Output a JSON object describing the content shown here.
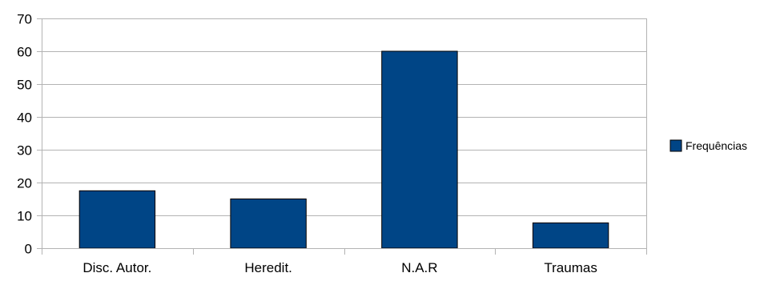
{
  "chart_data": {
    "type": "bar",
    "categories": [
      "Disc. Autor.",
      "Heredit.",
      "N.A.R",
      "Traumas"
    ],
    "series": [
      {
        "name": "Frequências",
        "values": [
          17.5,
          15,
          60,
          7.7
        ]
      }
    ],
    "ylim": [
      0,
      70
    ],
    "yticks": [
      "0",
      "10",
      "20",
      "30",
      "40",
      "50",
      "60",
      "70"
    ],
    "grid": true,
    "legend_position": "right",
    "colors": {
      "bar": "#004586",
      "bar_border": "#000000",
      "grid": "#b3b3b3",
      "axis": "#b3b3b3"
    }
  }
}
